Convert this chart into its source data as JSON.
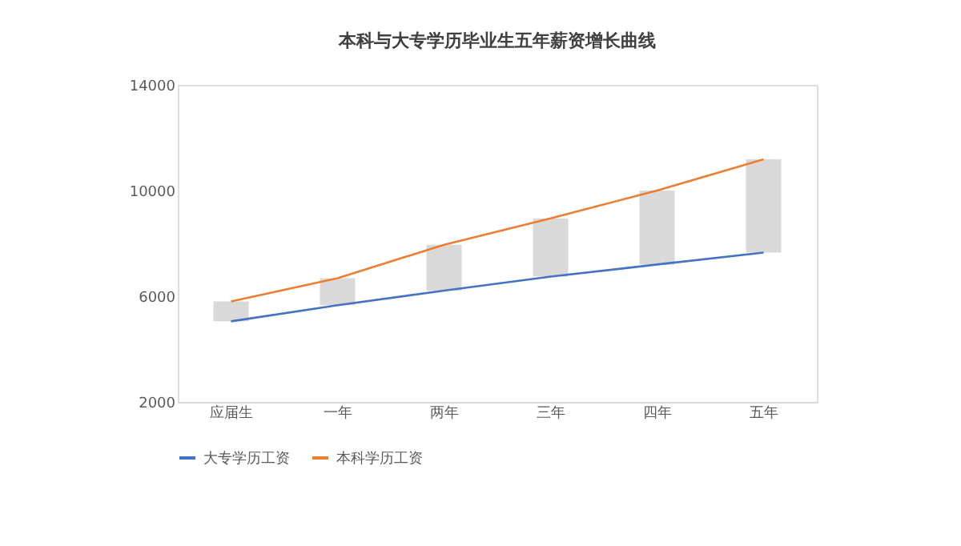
{
  "chart_data": {
    "type": "line",
    "title": "本科与大专学历毕业生五年薪资增长曲线",
    "categories": [
      "应届生",
      "一年",
      "两年",
      "三年",
      "四年",
      "五年"
    ],
    "series": [
      {
        "type": "bar",
        "color": "#d0d0d0",
        "base": [
          5050,
          5660,
          6210,
          6740,
          7200,
          7650
        ],
        "values": [
          750,
          1020,
          1740,
          2210,
          2800,
          3530
        ]
      },
      {
        "name": "大专学历工资",
        "color": "#4472c4",
        "values": [
          5050,
          5660,
          6210,
          6740,
          7200,
          7650
        ]
      },
      {
        "name": "本科学历工资",
        "color": "#ed7d31",
        "values": [
          5800,
          6680,
          7950,
          8950,
          10000,
          11180
        ]
      }
    ],
    "ylim": [
      2000,
      14000
    ],
    "yticks": [
      2000,
      6000,
      10000,
      14000
    ],
    "grid": false,
    "legend": "bottom",
    "marker": "none",
    "line_style": "solid"
  }
}
